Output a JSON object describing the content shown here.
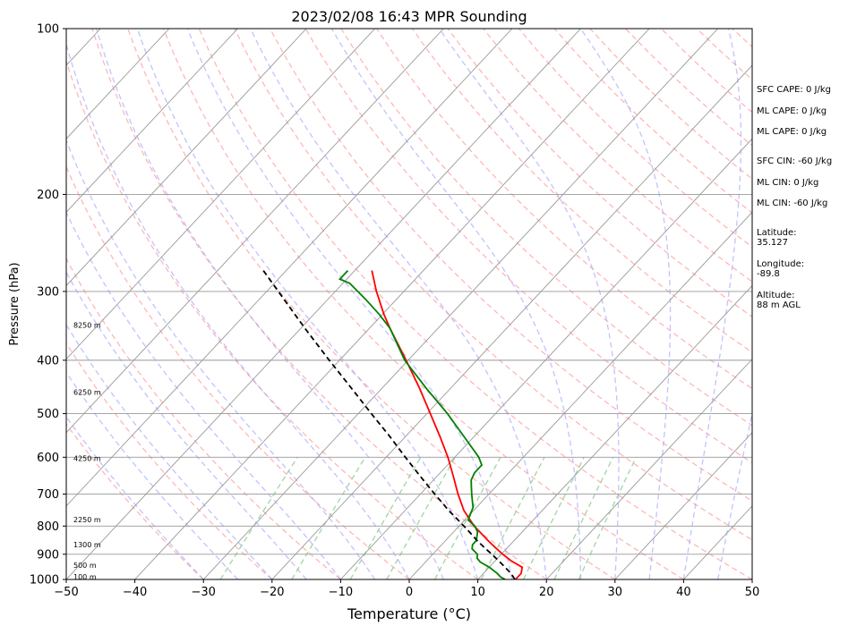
{
  "chart_data": {
    "type": "line",
    "title": "2023/02/08 16:43 MPR Sounding",
    "xlabel": "Temperature (°C)",
    "ylabel": "Pressure (hPa)",
    "xlim": [
      -50,
      50
    ],
    "ylim": [
      1000,
      100
    ],
    "y_scale": "log",
    "grid": true,
    "x_ticks": [
      -50,
      -40,
      -30,
      -20,
      -10,
      0,
      10,
      20,
      30,
      40,
      50
    ],
    "x_tick_labels": [
      "−50",
      "−40",
      "−30",
      "−20",
      "−10",
      "0",
      "10",
      "20",
      "30",
      "40",
      "50"
    ],
    "y_ticks": [
      1000,
      900,
      800,
      700,
      600,
      500,
      400,
      300,
      200,
      100
    ],
    "y_tick_labels": [
      "1000",
      "900",
      "800",
      "700",
      "600",
      "500",
      "400",
      "300",
      "200",
      "100"
    ],
    "height_labels": [
      {
        "label": "100 m",
        "pressure": 988
      },
      {
        "label": "500 m",
        "pressure": 942
      },
      {
        "label": "1300 m",
        "pressure": 864
      },
      {
        "label": "2250 m",
        "pressure": 779
      },
      {
        "label": "4250 m",
        "pressure": 603
      },
      {
        "label": "6250 m",
        "pressure": 457
      },
      {
        "label": "8250 m",
        "pressure": 345
      }
    ],
    "series": [
      {
        "color": "#ff0000",
        "kind": "temperature",
        "pressure": [
          1000,
          990,
          975,
          950,
          925,
          900,
          875,
          850,
          800,
          750,
          700,
          650,
          600,
          550,
          500,
          450,
          400,
          350,
          330,
          300,
          275
        ],
        "values": [
          15.5,
          15.5,
          15.5,
          14.8,
          12.3,
          10.2,
          8.2,
          6.2,
          2.2,
          -1.4,
          -4.5,
          -7.6,
          -11.0,
          -15.0,
          -19.5,
          -24.5,
          -30.3,
          -37.0,
          -39.8,
          -44.0,
          -47.5
        ]
      },
      {
        "color": "#008000",
        "kind": "dewpoint",
        "pressure": [
          1000,
          990,
          975,
          950,
          930,
          915,
          900,
          880,
          865,
          850,
          820,
          800,
          780,
          760,
          740,
          720,
          700,
          680,
          660,
          640,
          620,
          600,
          550,
          500,
          450,
          400,
          350,
          330,
          310,
          290,
          285,
          275
        ],
        "values": [
          14.0,
          13.0,
          12.0,
          10.0,
          8.0,
          7.0,
          6.5,
          5.0,
          4.5,
          4.5,
          3.5,
          2.3,
          0.5,
          0.0,
          -0.5,
          -1.5,
          -2.5,
          -3.5,
          -4.5,
          -5.0,
          -5.0,
          -6.5,
          -11.5,
          -17.0,
          -23.5,
          -30.5,
          -37.0,
          -40.5,
          -44.5,
          -49.0,
          -51.0,
          -51.0
        ]
      },
      {
        "color": "#000000",
        "kind": "parcel",
        "pressure": [
          1000,
          975,
          950,
          925,
          900,
          875,
          850,
          825,
          800,
          775,
          750,
          725,
          700,
          650,
          600,
          550,
          500,
          450,
          400,
          350,
          300,
          275
        ],
        "values": [
          15.4,
          14.0,
          12.3,
          10.5,
          8.6,
          6.6,
          4.6,
          2.7,
          0.7,
          -1.4,
          -3.6,
          -5.7,
          -7.9,
          -12.4,
          -17.2,
          -22.3,
          -28.1,
          -34.4,
          -41.5,
          -49.4,
          -58.3,
          -63.3
        ]
      }
    ]
  },
  "stats": [
    {
      "text": "SFC CAPE: 0 J/kg",
      "top": 95
    },
    {
      "text": "ML CAPE: 0 J/kg",
      "top": 119
    },
    {
      "text": "ML CAPE: 0 J/kg",
      "top": 142
    },
    {
      "text": "SFC CIN: -60 J/kg",
      "top": 175
    },
    {
      "text": "ML CIN: 0 J/kg",
      "top": 199
    },
    {
      "text": "ML CIN: -60 J/kg",
      "top": 222
    }
  ],
  "location": [
    {
      "label": "Latitude:",
      "value": "35.127",
      "top": 255
    },
    {
      "label": "Longitude:",
      "value": "-89.8",
      "top": 290
    },
    {
      "label": "Altitude:",
      "value": "88 m AGL",
      "top": 325
    }
  ],
  "colors": {
    "temperature": "#ff0000",
    "dewpoint": "#008000",
    "parcel": "#000000",
    "dry_adiabats": "#ff9999",
    "moist_adiabats": "#9999ff",
    "mixing_ratio": "#88cc88",
    "isotherms": "#999999",
    "isobars": "#999999"
  }
}
